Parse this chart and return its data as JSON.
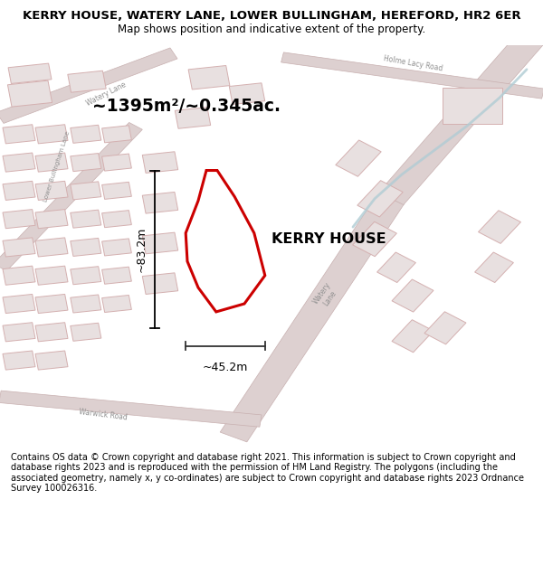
{
  "title": "KERRY HOUSE, WATERY LANE, LOWER BULLINGHAM, HEREFORD, HR2 6ER",
  "subtitle": "Map shows position and indicative extent of the property.",
  "footer": "Contains OS data © Crown copyright and database right 2021. This information is subject to Crown copyright and database rights 2023 and is reproduced with the permission of HM Land Registry. The polygons (including the associated geometry, namely x, y co-ordinates) are subject to Crown copyright and database rights 2023 Ordnance Survey 100026316.",
  "area_label": "~1395m²/~0.345ac.",
  "property_label": "KERRY HOUSE",
  "dim_height": "~83.2m",
  "dim_width": "~45.2m",
  "bg_color": "#ffffff",
  "map_bg": "#f7f3f3",
  "title_fontsize": 9.5,
  "subtitle_fontsize": 8.5,
  "footer_fontsize": 7.0,
  "road_color": "#d4b8b8",
  "road_edge_color": "#c8a8a8",
  "building_face": "#e8e0e0",
  "building_edge": "#d4b0b0",
  "property_edge": "#cc0000",
  "dim_color": "#333333",
  "road_label_color": "#909090",
  "stream_color": "#b0ccd4"
}
